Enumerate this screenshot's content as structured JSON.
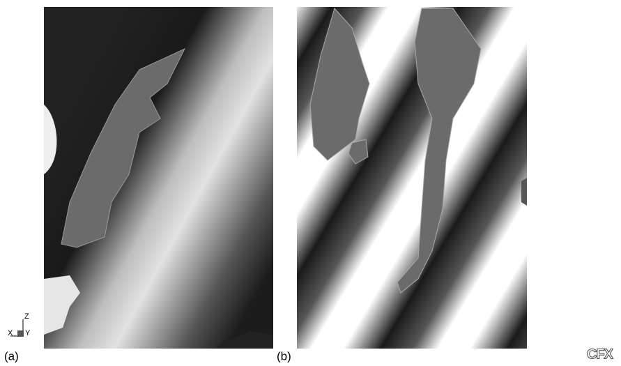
{
  "panels": [
    {
      "label": "(a)"
    },
    {
      "label": "(b)"
    }
  ],
  "axes": {
    "z": "Z",
    "x": "X",
    "y": "Y"
  },
  "logo": "CFX"
}
